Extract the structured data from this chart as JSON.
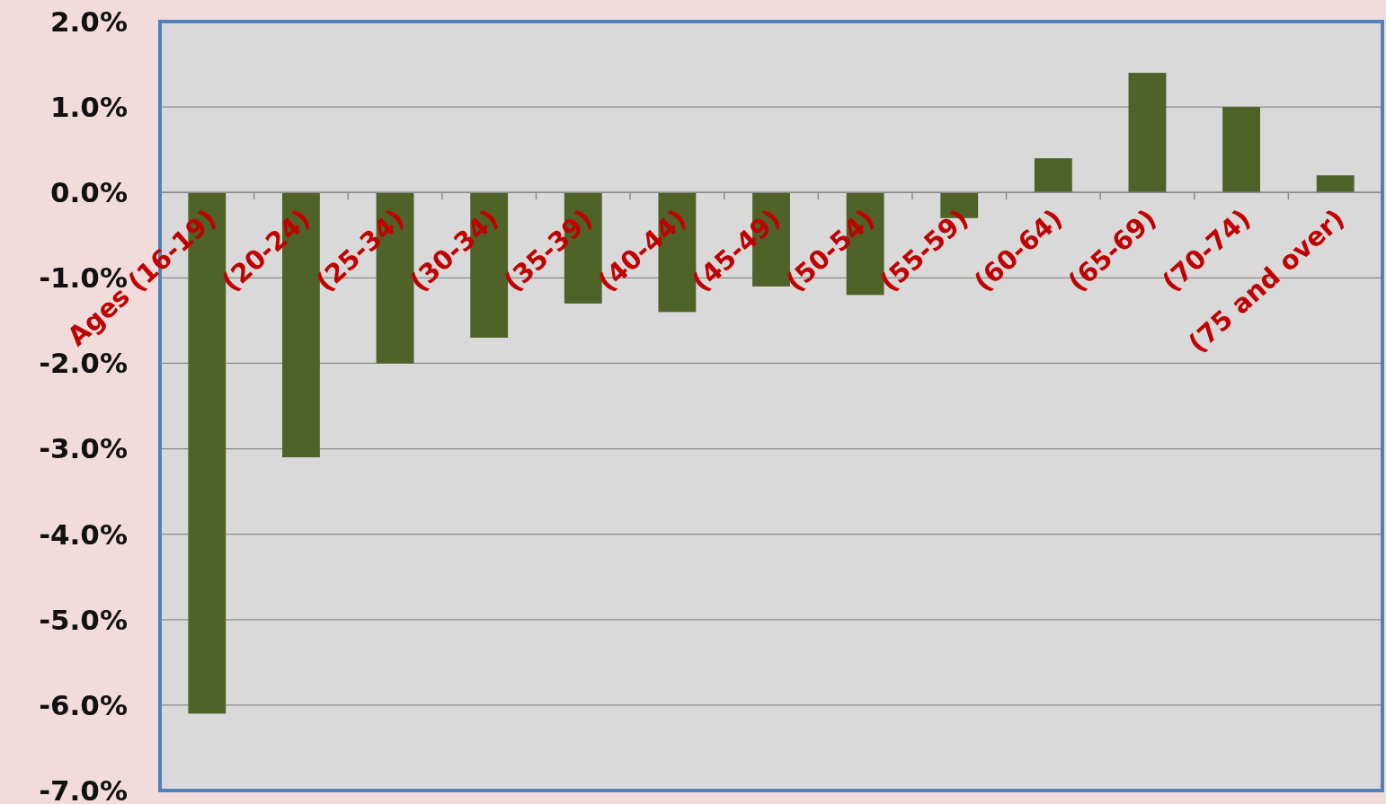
{
  "chart_data": {
    "type": "bar",
    "categories": [
      "Ages (16-19)",
      "(20-24)",
      "(25-34)",
      "(30-34)",
      "(35-39)",
      "(40-44)",
      "(45-49)",
      "(50-54)",
      "(55-59)",
      "(60-64)",
      "(65-69)",
      "(70-74)",
      "(75 and over)"
    ],
    "values": [
      -6.1,
      -3.1,
      -2.0,
      -1.7,
      -1.3,
      -1.4,
      -1.1,
      -1.2,
      -0.3,
      0.4,
      1.4,
      1.0,
      0.2
    ],
    "color": "#4f6228",
    "ylim": [
      -7,
      2
    ],
    "yticks": [
      {
        "value": 2,
        "label": "2.0%"
      },
      {
        "value": 1,
        "label": "1.0%"
      },
      {
        "value": 0,
        "label": "0.0%"
      },
      {
        "value": -1,
        "label": "-1.0%"
      },
      {
        "value": -2,
        "label": "-2.0%"
      },
      {
        "value": -3,
        "label": "-3.0%"
      },
      {
        "value": -4,
        "label": "-4.0%"
      },
      {
        "value": -5,
        "label": "-5.0%"
      },
      {
        "value": -6,
        "label": "-6.0%"
      },
      {
        "value": -7,
        "label": "-7.0%"
      }
    ],
    "grid": "y"
  }
}
